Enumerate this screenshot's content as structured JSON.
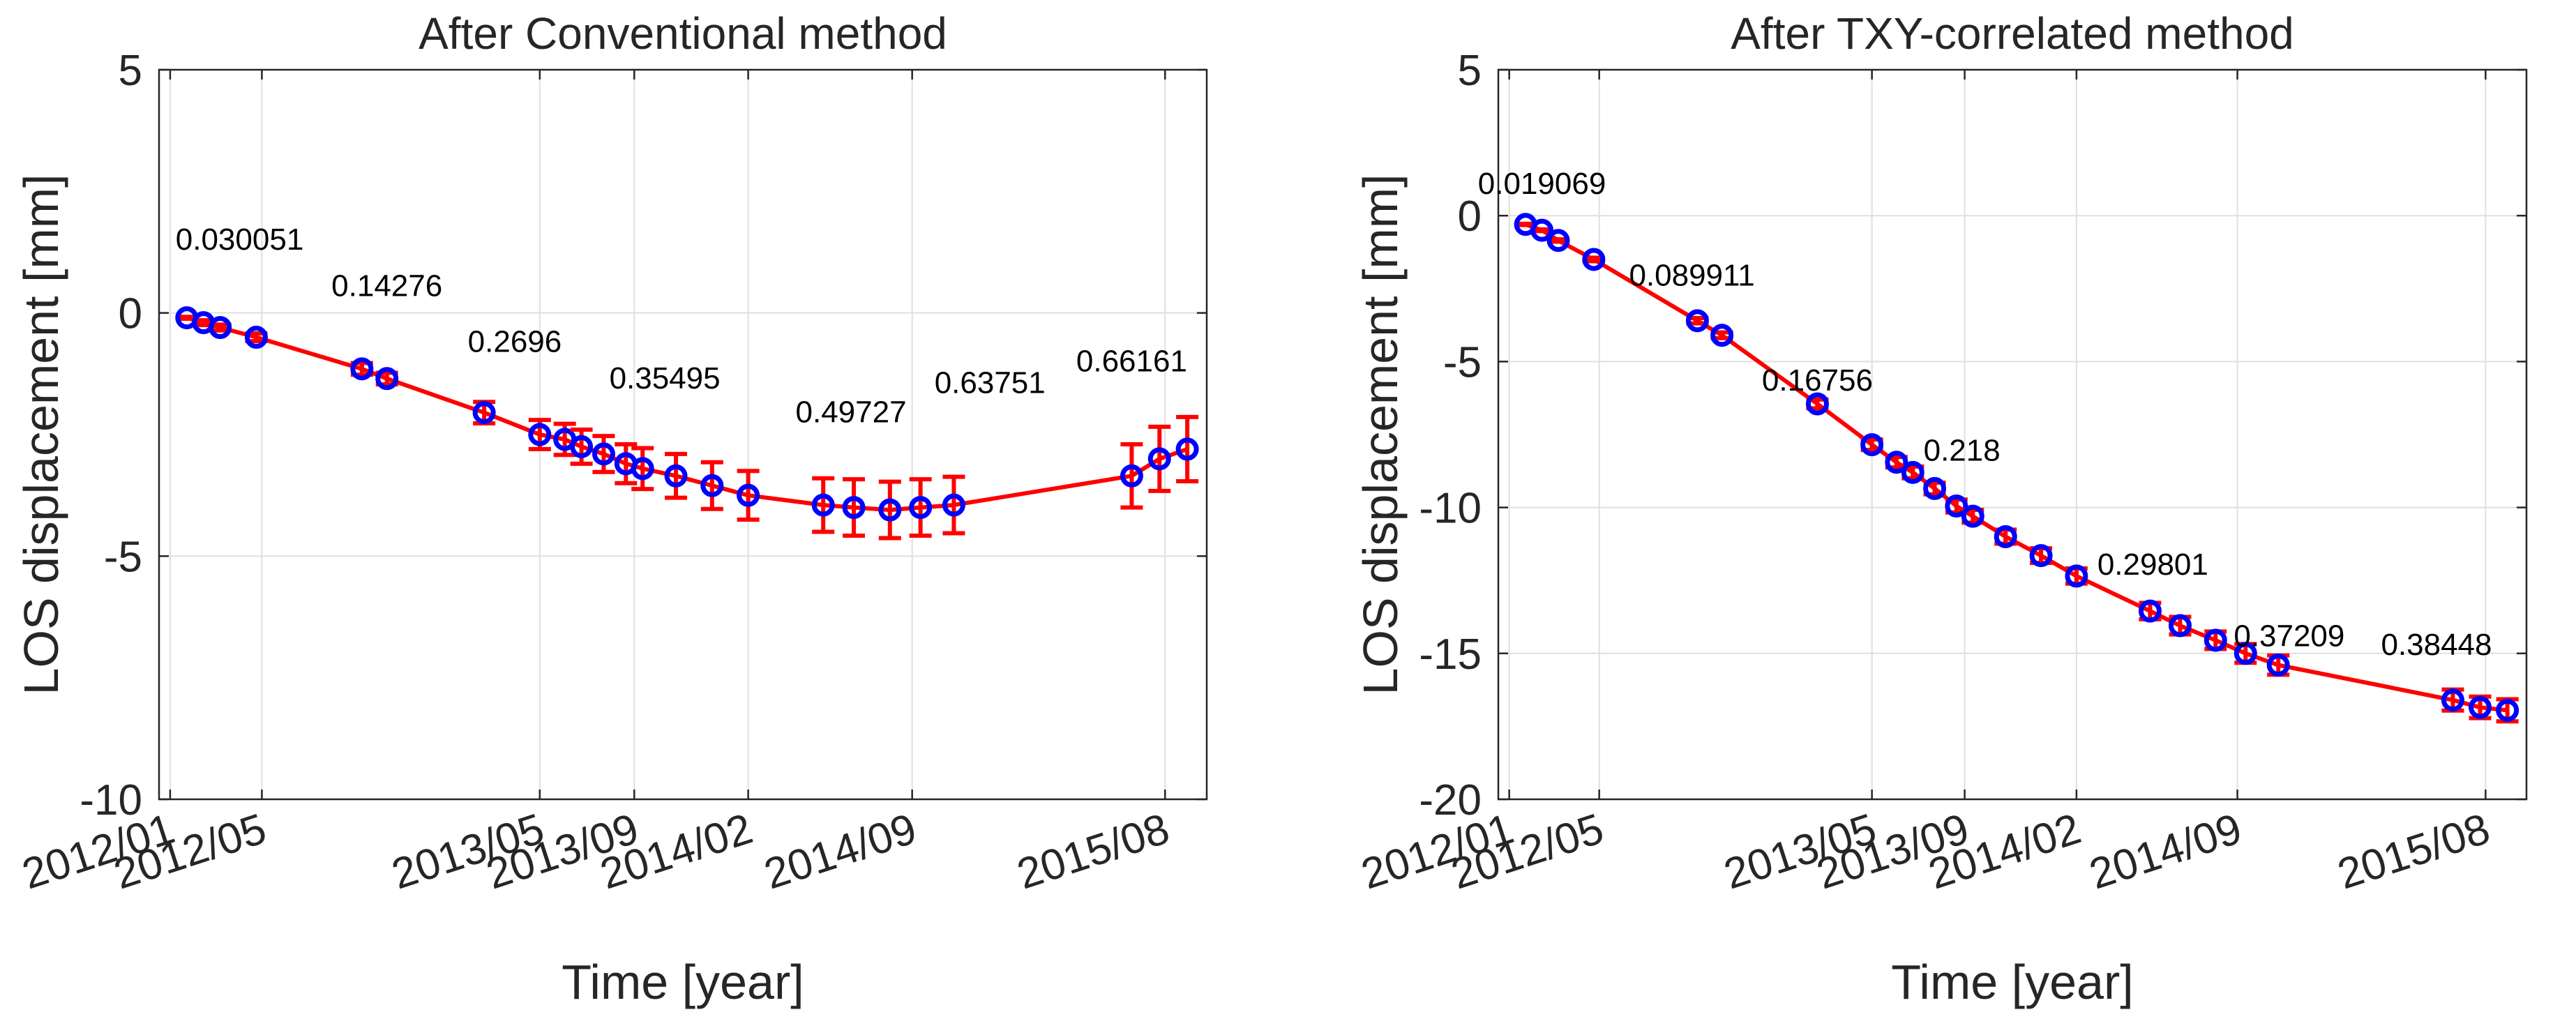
{
  "chart_data": [
    {
      "type": "line",
      "title": "After Conventional method",
      "xlabel": "Time [year]",
      "ylabel": "LOS displacement [mm]",
      "ylim": [
        -10,
        5
      ],
      "yticks": [
        5,
        0,
        -5,
        -10
      ],
      "ytick_labels": [
        "5",
        "0",
        "-5",
        "-10"
      ],
      "xlim": [
        2011.96,
        2015.73
      ],
      "xticks": [
        2012.0,
        2012.33,
        2013.33,
        2013.67,
        2014.08,
        2014.67,
        2015.58
      ],
      "xtick_labels": [
        "2012/01",
        "2012/05",
        "2013/05",
        "2013/09",
        "2014/02",
        "2014/09",
        "2015/08"
      ],
      "grid": true,
      "line_color": "#ff0000",
      "marker_color": "#0000ff",
      "errorbar_color": "#ff0000",
      "series": [
        {
          "name": "LOS displacement",
          "x": [
            2012.06,
            2012.12,
            2012.18,
            2012.31,
            2012.69,
            2012.78,
            2013.13,
            2013.33,
            2013.42,
            2013.48,
            2013.56,
            2013.64,
            2013.7,
            2013.82,
            2013.95,
            2014.08,
            2014.35,
            2014.46,
            2014.59,
            2014.7,
            2014.82,
            2015.46,
            2015.56,
            2015.66
          ],
          "y": [
            -0.1,
            -0.2,
            -0.3,
            -0.5,
            -1.15,
            -1.35,
            -2.05,
            -2.5,
            -2.6,
            -2.75,
            -2.9,
            -3.1,
            -3.2,
            -3.35,
            -3.55,
            -3.75,
            -3.95,
            -4.0,
            -4.05,
            -4.0,
            -3.95,
            -3.35,
            -3.0,
            -2.8
          ],
          "err": [
            0.02,
            0.05,
            0.06,
            0.08,
            0.12,
            0.12,
            0.22,
            0.3,
            0.32,
            0.35,
            0.37,
            0.4,
            0.42,
            0.45,
            0.48,
            0.5,
            0.55,
            0.58,
            0.58,
            0.58,
            0.58,
            0.65,
            0.66,
            0.66
          ]
        }
      ],
      "annotations": [
        {
          "text": "0.030051",
          "x": 2012.25,
          "y": 1.3
        },
        {
          "text": "0.14276",
          "x": 2012.78,
          "y": 0.35
        },
        {
          "text": "0.2696",
          "x": 2013.24,
          "y": -0.8
        },
        {
          "text": "0.35495",
          "x": 2013.78,
          "y": -1.55
        },
        {
          "text": "0.49727",
          "x": 2014.45,
          "y": -2.25
        },
        {
          "text": "0.63751",
          "x": 2014.95,
          "y": -1.65
        },
        {
          "text": "0.66161",
          "x": 2015.46,
          "y": -1.2
        }
      ]
    },
    {
      "type": "line",
      "title": "After TXY-correlated method",
      "xlabel": "Time [year]",
      "ylabel": "LOS displacement [mm]",
      "ylim": [
        -20,
        5
      ],
      "yticks": [
        5,
        0,
        -5,
        -10,
        -15,
        -20
      ],
      "ytick_labels": [
        "5",
        "0",
        "-5",
        "-10",
        "-15",
        "-20"
      ],
      "xlim": [
        2011.96,
        2015.73
      ],
      "xticks": [
        2012.0,
        2012.33,
        2013.33,
        2013.67,
        2014.08,
        2014.67,
        2015.58
      ],
      "xtick_labels": [
        "2012/01",
        "2012/05",
        "2013/05",
        "2013/09",
        "2014/02",
        "2014/09",
        "2015/08"
      ],
      "grid": true,
      "line_color": "#ff0000",
      "marker_color": "#0000ff",
      "errorbar_color": "#ff0000",
      "series": [
        {
          "name": "LOS displacement",
          "x": [
            2012.06,
            2012.12,
            2012.18,
            2012.31,
            2012.69,
            2012.78,
            2013.13,
            2013.33,
            2013.42,
            2013.48,
            2013.56,
            2013.64,
            2013.7,
            2013.82,
            2013.95,
            2014.08,
            2014.35,
            2014.46,
            2014.59,
            2014.7,
            2014.82,
            2015.46,
            2015.56,
            2015.66
          ],
          "y": [
            -0.3,
            -0.5,
            -0.85,
            -1.5,
            -3.6,
            -4.1,
            -6.45,
            -7.85,
            -8.45,
            -8.8,
            -9.35,
            -9.95,
            -10.3,
            -11.0,
            -11.65,
            -12.35,
            -13.55,
            -14.05,
            -14.55,
            -15.0,
            -15.4,
            -16.6,
            -16.85,
            -16.95
          ],
          "err": [
            0.02,
            0.03,
            0.04,
            0.06,
            0.09,
            0.1,
            0.15,
            0.18,
            0.18,
            0.2,
            0.2,
            0.22,
            0.22,
            0.24,
            0.25,
            0.26,
            0.28,
            0.3,
            0.3,
            0.32,
            0.33,
            0.36,
            0.37,
            0.38
          ]
        }
      ],
      "annotations": [
        {
          "text": "0.019069",
          "x": 2012.12,
          "y": 0.75
        },
        {
          "text": "0.089911",
          "x": 2012.67,
          "y": -2.4
        },
        {
          "text": "0.16756",
          "x": 2013.13,
          "y": -6.0
        },
        {
          "text": "0.218",
          "x": 2013.66,
          "y": -8.4
        },
        {
          "text": "0.29801",
          "x": 2014.36,
          "y": -12.3
        },
        {
          "text": "0.37209",
          "x": 2014.86,
          "y": -14.75
        },
        {
          "text": "0.38448",
          "x": 2015.4,
          "y": -15.05
        }
      ]
    }
  ]
}
